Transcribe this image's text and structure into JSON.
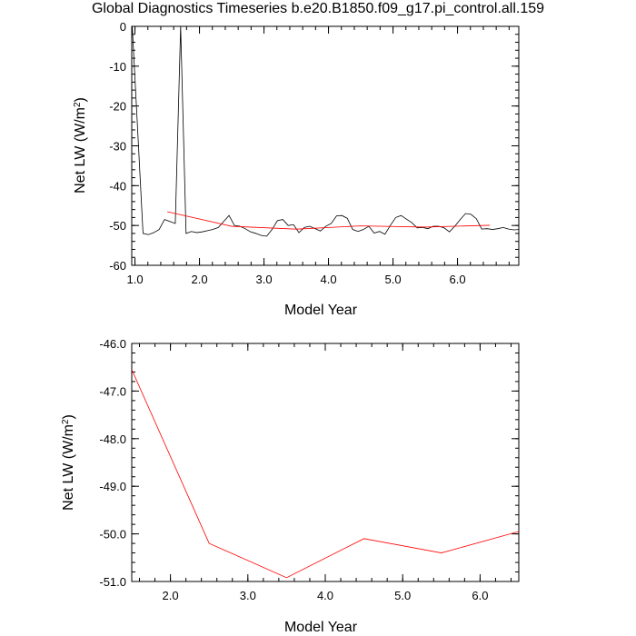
{
  "title": "Global Diagnostics Timeseries b.e20.B1850.f09_g17.pi_control.all.159",
  "colors": {
    "monthly": "#000000",
    "annual": "#ff0000",
    "frame": "#000000"
  },
  "chart_data": [
    {
      "type": "line",
      "xlabel": "Model Year",
      "ylabel": "Net LW (W/m",
      "ylabel_sup": "2",
      "ylabel_close": ")",
      "xlim": [
        0.95,
        6.95
      ],
      "ylim": [
        -60,
        0
      ],
      "xticks": [
        1.0,
        2.0,
        3.0,
        4.0,
        5.0,
        6.0
      ],
      "xtick_labels": [
        "1.0",
        "2.0",
        "3.0",
        "4.0",
        "5.0",
        "6.0"
      ],
      "yticks": [
        0,
        -10,
        -20,
        -30,
        -40,
        -50,
        -60
      ],
      "ytick_labels": [
        "0",
        "-10",
        "-20",
        "-30",
        "-40",
        "-50",
        "-60"
      ],
      "series": [
        {
          "style": "monthly",
          "x": [
            0.958,
            1.125,
            1.208,
            1.292,
            1.375,
            1.458,
            1.542,
            1.625,
            1.708,
            1.792,
            1.875,
            1.958,
            2.042,
            2.125,
            2.208,
            2.292,
            2.375,
            2.458,
            2.542,
            2.625,
            2.708,
            2.792,
            2.875,
            2.958,
            3.042,
            3.125,
            3.208,
            3.292,
            3.375,
            3.458,
            3.542,
            3.625,
            3.708,
            3.792,
            3.875,
            3.958,
            4.042,
            4.125,
            4.208,
            4.292,
            4.375,
            4.458,
            4.542,
            4.625,
            4.708,
            4.792,
            4.875,
            4.958,
            5.042,
            5.125,
            5.208,
            5.292,
            5.375,
            5.458,
            5.542,
            5.625,
            5.708,
            5.792,
            5.875,
            5.958,
            6.042,
            6.125,
            6.208,
            6.292,
            6.375,
            6.458,
            6.542,
            6.625,
            6.708,
            6.792,
            6.875,
            6.958
          ],
          "y": [
            0,
            -52.0,
            -52.3,
            -51.8,
            -51.0,
            -48.5,
            -49.0,
            -49.5,
            0,
            -52.0,
            -51.5,
            -51.8,
            -51.6,
            -51.3,
            -51.0,
            -50.5,
            -49.0,
            -47.5,
            -50.0,
            -50.2,
            -50.8,
            -51.6,
            -52.0,
            -52.5,
            -52.7,
            -51.0,
            -48.8,
            -48.5,
            -50.0,
            -49.8,
            -51.8,
            -50.5,
            -50.2,
            -50.8,
            -51.4,
            -50.2,
            -49.5,
            -47.6,
            -47.5,
            -48.2,
            -51.0,
            -51.5,
            -51.0,
            -50.2,
            -51.9,
            -51.5,
            -52.2,
            -50.0,
            -48.0,
            -47.5,
            -48.4,
            -49.3,
            -50.6,
            -50.5,
            -50.8,
            -50.2,
            -50.2,
            -50.6,
            -51.6,
            -50.2,
            -48.5,
            -47.0,
            -47.2,
            -48.3,
            -50.9,
            -50.8,
            -51.0,
            -50.8,
            -50.5,
            -50.9,
            -51.1,
            -51.0
          ]
        },
        {
          "style": "annual",
          "x": [
            1.5,
            2.5,
            3.5,
            4.5,
            5.5,
            6.5
          ],
          "y": [
            -46.55,
            -50.2,
            -50.92,
            -50.1,
            -50.4,
            -49.95
          ]
        }
      ]
    },
    {
      "type": "line",
      "xlabel": "Model Year",
      "ylabel": "Net LW (W/m",
      "ylabel_sup": "2",
      "ylabel_close": ")",
      "xlim": [
        1.5,
        6.5
      ],
      "ylim": [
        -51.0,
        -46.0
      ],
      "xticks": [
        2.0,
        3.0,
        4.0,
        5.0,
        6.0
      ],
      "xtick_labels": [
        "2.0",
        "3.0",
        "4.0",
        "5.0",
        "6.0"
      ],
      "yticks": [
        -46.0,
        -47.0,
        -48.0,
        -49.0,
        -50.0,
        -51.0
      ],
      "ytick_labels": [
        "-46.0",
        "-47.0",
        "-48.0",
        "-49.0",
        "-50.0",
        "-51.0"
      ],
      "series": [
        {
          "style": "annual",
          "x": [
            1.5,
            2.5,
            3.5,
            4.5,
            5.5,
            6.5
          ],
          "y": [
            -46.55,
            -50.2,
            -50.92,
            -50.1,
            -50.4,
            -49.95
          ]
        }
      ]
    }
  ]
}
